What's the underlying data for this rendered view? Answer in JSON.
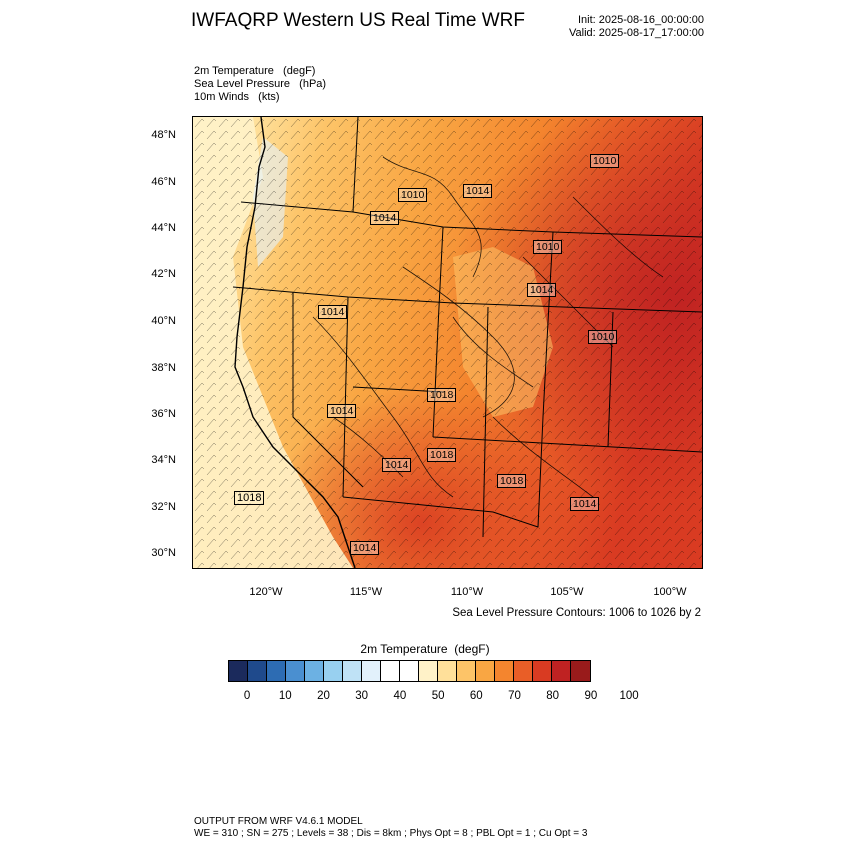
{
  "header": {
    "title": "IWFAQRP Western US Real Time WRF",
    "init": "Init: 2025-08-16_00:00:00",
    "valid": "Valid: 2025-08-17_17:00:00"
  },
  "fields": [
    "2m Temperature   (degF)",
    "Sea Level Pressure   (hPa)",
    "10m Winds   (kts)"
  ],
  "map": {
    "lat_labels": [
      "48°N",
      "46°N",
      "44°N",
      "42°N",
      "40°N",
      "38°N",
      "36°N",
      "34°N",
      "32°N",
      "30°N"
    ],
    "lon_labels": [
      "120°W",
      "115°W",
      "110°W",
      "105°W",
      "100°W"
    ],
    "pressure_labels": [
      "1010",
      "1010",
      "1014",
      "1014",
      "1010",
      "1014",
      "1010",
      "1014",
      "1018",
      "1014",
      "1018",
      "1018",
      "1014",
      "1014",
      "1014"
    ],
    "contour_note": "Sea Level Pressure Contours: 1006 to 1026 by 2"
  },
  "colorbar": {
    "title": "2m Temperature  (degF)",
    "colors": [
      "#1b2a5c",
      "#1f4a8c",
      "#2d6cb3",
      "#4a8fd0",
      "#6cb1e3",
      "#98d0f0",
      "#bfe2f6",
      "#e2f1fb",
      "#ffffff",
      "#ffffff",
      "#fff2c8",
      "#ffe09a",
      "#fdc468",
      "#f9a643",
      "#f4852e",
      "#e95e27",
      "#d93b22",
      "#bf2222",
      "#991b1b"
    ],
    "labels": [
      "0",
      "10",
      "20",
      "30",
      "40",
      "50",
      "60",
      "70",
      "80",
      "90",
      "100"
    ]
  },
  "footer": {
    "line1": "OUTPUT FROM WRF V4.6.1 MODEL",
    "line2": "WE = 310 ; SN = 275 ; Levels = 38 ; Dis = 8km ; Phys Opt = 8 ; PBL Opt = 1 ; Cu Opt = 3"
  }
}
